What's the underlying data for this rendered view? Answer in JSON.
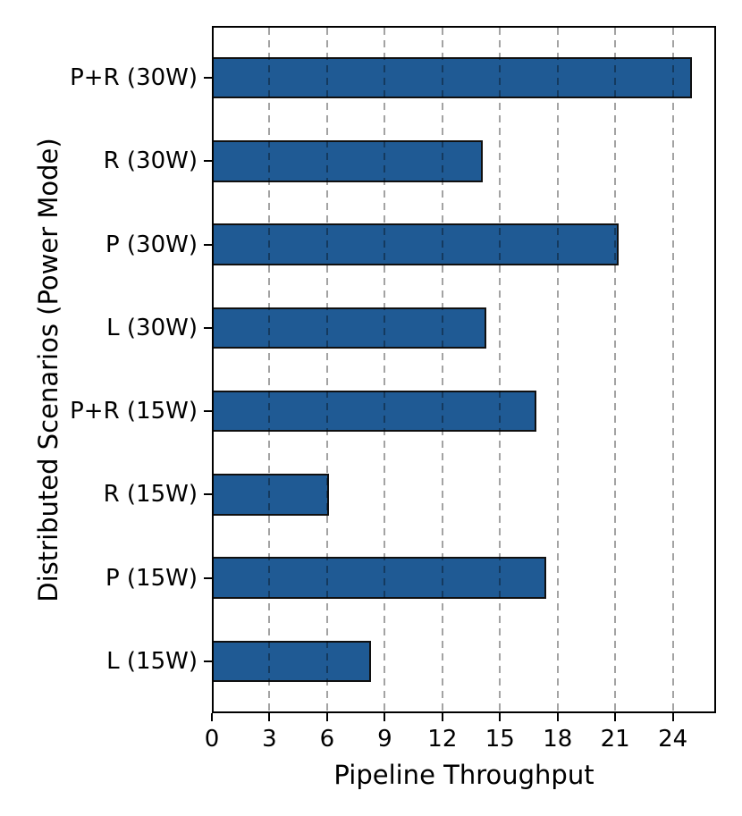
{
  "chart_data": {
    "type": "bar",
    "orientation": "horizontal",
    "title": "",
    "xlabel": "Pipeline Throughput",
    "ylabel": "Distributed Scenarios (Power Mode)",
    "categories": [
      "P+R (30W)",
      "R (30W)",
      "P (30W)",
      "L (30W)",
      "P+R (15W)",
      "R (15W)",
      "P (15W)",
      "L (15W)"
    ],
    "category_order": "top-to-bottom",
    "values": [
      25.0,
      14.1,
      21.2,
      14.3,
      16.9,
      6.1,
      17.4,
      8.3
    ],
    "xticks": [
      0,
      3,
      6,
      9,
      12,
      15,
      18,
      21,
      24
    ],
    "xlim": [
      0,
      26.25
    ],
    "bar_relative_height": 0.5,
    "grid": "vertical-dashed-over-bars",
    "legend": "none",
    "colors": {
      "bar_fill": "#1f5a94",
      "bar_edge": "#101010",
      "spine": "#000000",
      "grid_rgba": "rgba(0,0,0,0.36)",
      "text": "#000000",
      "background": "#ffffff"
    }
  }
}
